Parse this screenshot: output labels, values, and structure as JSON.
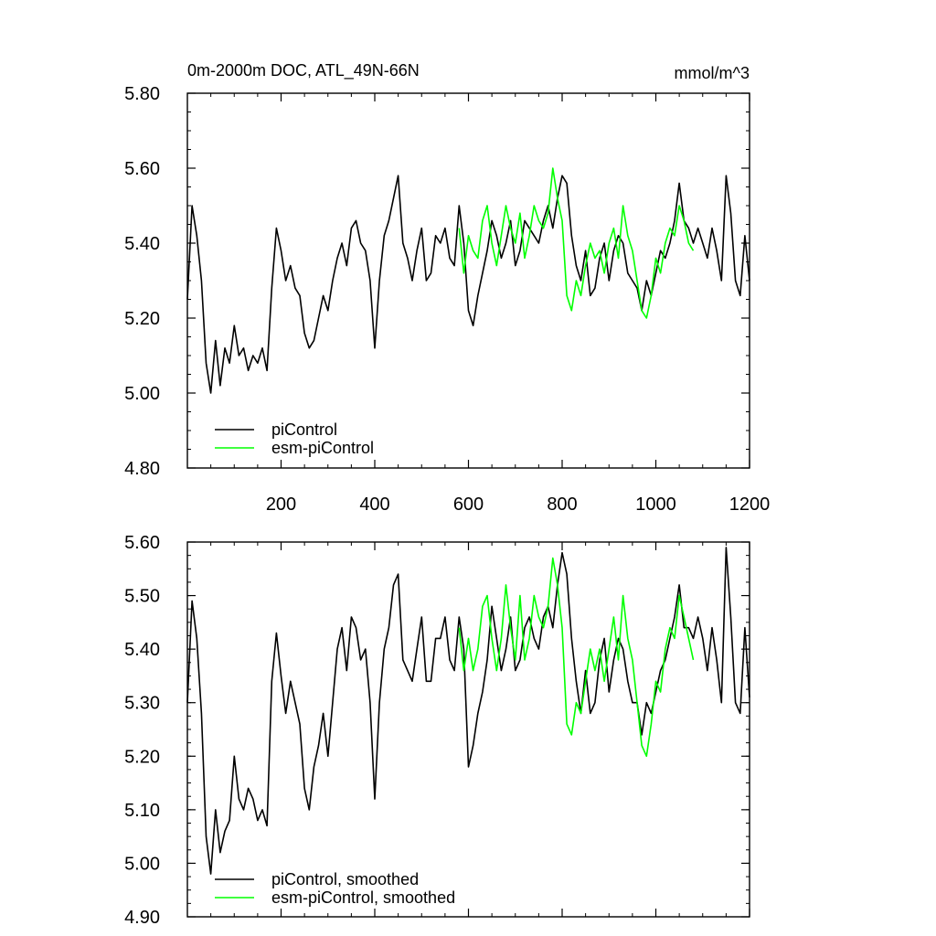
{
  "figure": {
    "title": "0m-2000m DOC, ATL_49N-66N",
    "units": "mmol/m^3"
  },
  "chart_data": [
    {
      "type": "line",
      "panel": "top",
      "title": "0m-2000m DOC, ATL_49N-66N",
      "units_label": "mmol/m^3",
      "xlim": [
        0,
        1200
      ],
      "ylim": [
        4.8,
        5.8
      ],
      "x_ticks": [
        200,
        400,
        600,
        800,
        1000,
        1200
      ],
      "x_tick_labels": [
        "200",
        "400",
        "600",
        "800",
        "1000",
        "1200"
      ],
      "y_ticks": [
        4.8,
        5.0,
        5.2,
        5.4,
        5.6,
        5.8
      ],
      "y_tick_labels": [
        "4.80",
        "5.00",
        "5.20",
        "5.40",
        "5.60",
        "5.80"
      ],
      "grid": false,
      "legend": "bottom-left",
      "series": [
        {
          "name": "piControl",
          "color": "#000000",
          "x": [
            0,
            10,
            20,
            30,
            40,
            50,
            60,
            70,
            80,
            90,
            100,
            110,
            120,
            130,
            140,
            150,
            160,
            170,
            180,
            190,
            200,
            210,
            220,
            230,
            240,
            250,
            260,
            270,
            280,
            290,
            300,
            310,
            320,
            330,
            340,
            350,
            360,
            370,
            380,
            390,
            400,
            410,
            420,
            430,
            440,
            450,
            460,
            470,
            480,
            490,
            500,
            510,
            520,
            530,
            540,
            550,
            560,
            570,
            580,
            590,
            600,
            610,
            620,
            630,
            640,
            650,
            660,
            670,
            680,
            690,
            700,
            710,
            720,
            730,
            740,
            750,
            760,
            770,
            780,
            790,
            800,
            810,
            820,
            830,
            840,
            850,
            860,
            870,
            880,
            890,
            900,
            910,
            920,
            930,
            940,
            950,
            960,
            970,
            980,
            990,
            1000,
            1010,
            1020,
            1030,
            1040,
            1050,
            1060,
            1070,
            1080,
            1090,
            1100,
            1110,
            1120,
            1130,
            1140,
            1150,
            1160,
            1170,
            1180,
            1190,
            1200
          ],
          "values": [
            5.25,
            5.5,
            5.42,
            5.3,
            5.08,
            5.0,
            5.14,
            5.02,
            5.12,
            5.08,
            5.18,
            5.1,
            5.12,
            5.06,
            5.1,
            5.08,
            5.12,
            5.06,
            5.28,
            5.44,
            5.38,
            5.3,
            5.34,
            5.28,
            5.26,
            5.16,
            5.12,
            5.14,
            5.2,
            5.26,
            5.22,
            5.3,
            5.36,
            5.4,
            5.34,
            5.44,
            5.46,
            5.4,
            5.38,
            5.3,
            5.12,
            5.3,
            5.42,
            5.46,
            5.52,
            5.58,
            5.4,
            5.36,
            5.3,
            5.38,
            5.44,
            5.3,
            5.32,
            5.42,
            5.4,
            5.44,
            5.36,
            5.34,
            5.5,
            5.4,
            5.22,
            5.18,
            5.26,
            5.32,
            5.38,
            5.46,
            5.42,
            5.36,
            5.4,
            5.46,
            5.34,
            5.38,
            5.46,
            5.44,
            5.42,
            5.4,
            5.46,
            5.5,
            5.44,
            5.52,
            5.58,
            5.56,
            5.42,
            5.34,
            5.3,
            5.38,
            5.26,
            5.28,
            5.36,
            5.4,
            5.3,
            5.38,
            5.42,
            5.4,
            5.32,
            5.3,
            5.28,
            5.22,
            5.3,
            5.26,
            5.32,
            5.38,
            5.36,
            5.4,
            5.46,
            5.56,
            5.46,
            5.44,
            5.4,
            5.44,
            5.4,
            5.36,
            5.44,
            5.38,
            5.3,
            5.58,
            5.48,
            5.3,
            5.26,
            5.42,
            5.3
          ]
        },
        {
          "name": "esm-piControl",
          "color": "#00ff00",
          "x": [
            580,
            590,
            600,
            610,
            620,
            630,
            640,
            650,
            660,
            670,
            680,
            690,
            700,
            710,
            720,
            730,
            740,
            750,
            760,
            770,
            780,
            790,
            800,
            810,
            820,
            830,
            840,
            850,
            860,
            870,
            880,
            890,
            900,
            910,
            920,
            930,
            940,
            950,
            960,
            970,
            980,
            990,
            1000,
            1010,
            1020,
            1030,
            1040,
            1050,
            1060,
            1070,
            1080
          ],
          "values": [
            5.44,
            5.32,
            5.42,
            5.38,
            5.36,
            5.46,
            5.5,
            5.4,
            5.34,
            5.42,
            5.5,
            5.44,
            5.4,
            5.48,
            5.36,
            5.42,
            5.5,
            5.46,
            5.44,
            5.48,
            5.6,
            5.52,
            5.46,
            5.26,
            5.22,
            5.3,
            5.26,
            5.34,
            5.4,
            5.36,
            5.38,
            5.32,
            5.4,
            5.44,
            5.36,
            5.5,
            5.42,
            5.38,
            5.3,
            5.22,
            5.2,
            5.26,
            5.36,
            5.32,
            5.4,
            5.44,
            5.42,
            5.5,
            5.46,
            5.4,
            5.38
          ]
        }
      ]
    },
    {
      "type": "line",
      "panel": "bottom",
      "xlim": [
        0,
        1200
      ],
      "ylim": [
        4.9,
        5.6
      ],
      "x_ticks": [
        200,
        400,
        600,
        800,
        1000,
        1200
      ],
      "y_ticks": [
        4.9,
        5.0,
        5.1,
        5.2,
        5.3,
        5.4,
        5.5,
        5.6
      ],
      "y_tick_labels": [
        "4.90",
        "5.00",
        "5.10",
        "5.20",
        "5.30",
        "5.40",
        "5.50",
        "5.60"
      ],
      "grid": false,
      "legend": "bottom-left",
      "series": [
        {
          "name": "piControl, smoothed",
          "color": "#000000",
          "x": [
            0,
            10,
            20,
            30,
            40,
            50,
            60,
            70,
            80,
            90,
            100,
            110,
            120,
            130,
            140,
            150,
            160,
            170,
            180,
            190,
            200,
            210,
            220,
            230,
            240,
            250,
            260,
            270,
            280,
            290,
            300,
            310,
            320,
            330,
            340,
            350,
            360,
            370,
            380,
            390,
            400,
            410,
            420,
            430,
            440,
            450,
            460,
            470,
            480,
            490,
            500,
            510,
            520,
            530,
            540,
            550,
            560,
            570,
            580,
            590,
            600,
            610,
            620,
            630,
            640,
            650,
            660,
            670,
            680,
            690,
            700,
            710,
            720,
            730,
            740,
            750,
            760,
            770,
            780,
            790,
            800,
            810,
            820,
            830,
            840,
            850,
            860,
            870,
            880,
            890,
            900,
            910,
            920,
            930,
            940,
            950,
            960,
            970,
            980,
            990,
            1000,
            1010,
            1020,
            1030,
            1040,
            1050,
            1060,
            1070,
            1080,
            1090,
            1100,
            1110,
            1120,
            1130,
            1140,
            1150,
            1160,
            1170,
            1180,
            1190,
            1200
          ],
          "values": [
            5.3,
            5.49,
            5.42,
            5.28,
            5.05,
            4.98,
            5.1,
            5.02,
            5.06,
            5.08,
            5.2,
            5.12,
            5.1,
            5.14,
            5.12,
            5.08,
            5.1,
            5.07,
            5.34,
            5.43,
            5.35,
            5.28,
            5.34,
            5.3,
            5.26,
            5.14,
            5.1,
            5.18,
            5.22,
            5.28,
            5.2,
            5.3,
            5.4,
            5.44,
            5.36,
            5.46,
            5.44,
            5.38,
            5.4,
            5.3,
            5.12,
            5.3,
            5.4,
            5.44,
            5.52,
            5.54,
            5.38,
            5.36,
            5.34,
            5.4,
            5.46,
            5.34,
            5.34,
            5.42,
            5.42,
            5.46,
            5.38,
            5.36,
            5.46,
            5.4,
            5.18,
            5.22,
            5.28,
            5.32,
            5.38,
            5.48,
            5.42,
            5.36,
            5.4,
            5.46,
            5.36,
            5.38,
            5.44,
            5.46,
            5.42,
            5.4,
            5.46,
            5.48,
            5.44,
            5.52,
            5.58,
            5.54,
            5.42,
            5.34,
            5.28,
            5.36,
            5.28,
            5.3,
            5.38,
            5.42,
            5.32,
            5.38,
            5.42,
            5.4,
            5.34,
            5.3,
            5.3,
            5.24,
            5.3,
            5.28,
            5.32,
            5.36,
            5.38,
            5.42,
            5.46,
            5.52,
            5.44,
            5.44,
            5.42,
            5.46,
            5.42,
            5.36,
            5.44,
            5.38,
            5.3,
            5.59,
            5.46,
            5.3,
            5.28,
            5.44,
            5.31
          ]
        },
        {
          "name": "esm-piControl, smoothed",
          "color": "#00ff00",
          "x": [
            580,
            590,
            600,
            610,
            620,
            630,
            640,
            650,
            660,
            670,
            680,
            690,
            700,
            710,
            720,
            730,
            740,
            750,
            760,
            770,
            780,
            790,
            800,
            810,
            820,
            830,
            840,
            850,
            860,
            870,
            880,
            890,
            900,
            910,
            920,
            930,
            940,
            950,
            960,
            970,
            980,
            990,
            1000,
            1010,
            1020,
            1030,
            1040,
            1050,
            1060,
            1070,
            1080
          ],
          "values": [
            5.44,
            5.36,
            5.42,
            5.36,
            5.4,
            5.48,
            5.5,
            5.42,
            5.36,
            5.42,
            5.52,
            5.44,
            5.38,
            5.5,
            5.38,
            5.42,
            5.5,
            5.46,
            5.44,
            5.48,
            5.57,
            5.52,
            5.44,
            5.26,
            5.24,
            5.3,
            5.28,
            5.34,
            5.4,
            5.36,
            5.4,
            5.34,
            5.4,
            5.46,
            5.38,
            5.5,
            5.42,
            5.38,
            5.3,
            5.22,
            5.2,
            5.26,
            5.34,
            5.32,
            5.4,
            5.44,
            5.42,
            5.5,
            5.46,
            5.42,
            5.38
          ]
        }
      ]
    }
  ]
}
